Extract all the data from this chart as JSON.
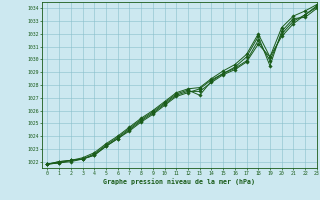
{
  "title": "Graphe pression niveau de la mer (hPa)",
  "xlim": [
    -0.5,
    23
  ],
  "ylim": [
    1021.5,
    1034.5
  ],
  "yticks": [
    1022,
    1023,
    1024,
    1025,
    1026,
    1027,
    1028,
    1029,
    1030,
    1031,
    1032,
    1033,
    1034
  ],
  "xticks": [
    0,
    1,
    2,
    3,
    4,
    5,
    6,
    7,
    8,
    9,
    10,
    11,
    12,
    13,
    14,
    15,
    16,
    17,
    18,
    19,
    20,
    21,
    22,
    23
  ],
  "bg_color": "#cce8f0",
  "grid_color": "#88bfcc",
  "line_color": "#1a5c1a",
  "line1": [
    1021.8,
    1021.9,
    1022.1,
    1022.2,
    1022.5,
    1023.2,
    1023.8,
    1024.5,
    1025.2,
    1025.8,
    1026.5,
    1027.2,
    1027.5,
    1027.5,
    1028.2,
    1028.8,
    1029.2,
    1029.8,
    1031.2,
    1030.2,
    1031.8,
    1032.8,
    1033.5,
    1034.2
  ],
  "line2": [
    1021.8,
    1021.9,
    1022.0,
    1022.2,
    1022.6,
    1023.3,
    1023.9,
    1024.6,
    1025.3,
    1025.9,
    1026.6,
    1027.3,
    1027.6,
    1027.2,
    1028.3,
    1028.9,
    1029.4,
    1030.2,
    1031.8,
    1029.5,
    1032.2,
    1033.2,
    1033.3,
    1034.0
  ],
  "line3": [
    1021.8,
    1022.0,
    1022.1,
    1022.3,
    1022.7,
    1023.4,
    1024.0,
    1024.7,
    1025.4,
    1026.0,
    1026.7,
    1027.4,
    1027.7,
    1027.8,
    1028.5,
    1029.1,
    1029.6,
    1030.4,
    1032.0,
    1030.2,
    1032.5,
    1033.4,
    1033.8,
    1034.3
  ],
  "line4": [
    1021.8,
    1022.0,
    1022.1,
    1022.2,
    1022.5,
    1023.2,
    1023.8,
    1024.4,
    1025.1,
    1025.7,
    1026.4,
    1027.1,
    1027.4,
    1027.7,
    1028.4,
    1028.9,
    1029.3,
    1029.9,
    1031.5,
    1029.9,
    1032.0,
    1033.0,
    1033.5,
    1034.1
  ]
}
